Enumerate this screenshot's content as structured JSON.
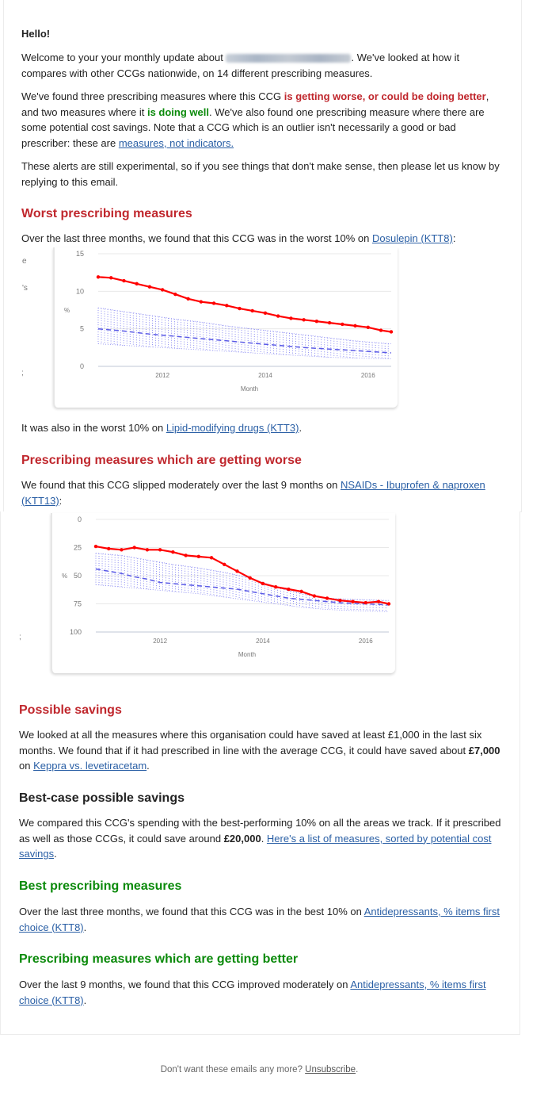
{
  "greeting": "Hello!",
  "intro": {
    "p1_a": "Welcome to your your monthly update about ",
    "p1_b": ". We've looked at how it compares with other CCGs nationwide, on 14 different prescribing measures.",
    "p2_a": "We've found three prescribing measures where this CCG ",
    "p2_worse": "is getting worse, or could be doing better",
    "p2_b": ", and two measures where it ",
    "p2_well": "is doing well",
    "p2_c": ". We've also found one prescribing measure where there are some potential cost savings. Note that a CCG which is an outlier isn't necessarily a good or bad prescriber: these are ",
    "p2_link": "measures, not indicators.",
    "p3": "These alerts are still experimental, so if you see things that don't make sense, then please let us know by replying to this email."
  },
  "worst": {
    "heading": "Worst prescribing measures",
    "text": "Over the last three months, we found that this CCG was in the worst 10% on ",
    "link": "Dosulepin (KTT8)",
    "after": ":",
    "also": "It was also in the worst 10% on ",
    "also_link": "Lipid-modifying drugs (KTT3)",
    "also_after": "."
  },
  "worse": {
    "heading": "Prescribing measures which are getting worse",
    "text": "We found that this CCG slipped moderately over the last 9 months on ",
    "link": "NSAIDs - Ibuprofen & naproxen (KTT13)",
    "after": ":"
  },
  "savings": {
    "heading": "Possible savings",
    "text": "We looked at all the measures where this organisation could have saved at least £1,000 in the last six months. We found that if it had prescribed in line with the average CCG, it could have saved about ",
    "amount": "£7,000",
    "on": " on ",
    "link": "Keppra vs. levetiracetam",
    "after": "."
  },
  "bestcase": {
    "heading": "Best-case possible savings",
    "text": "We compared this CCG's spending with the best-performing 10% on all the areas we track. If it prescribed as well as those CCGs, it could save around ",
    "amount": "£20,000",
    "mid": ". ",
    "link": "Here's a list of measures, sorted by potential cost savings",
    "after": "."
  },
  "best": {
    "heading": "Best prescribing measures",
    "text": "Over the last three months, we found that this CCG was in the best 10% on ",
    "link": "Antidepressants, % items first choice (KTT8)",
    "after": "."
  },
  "better": {
    "heading": "Prescribing measures which are getting better",
    "text": "Over the last 9 months, we found that this CCG improved moderately on ",
    "link": "Antidepressants, % items first choice (KTT8)",
    "after": "."
  },
  "footer": {
    "text": "Don't want these emails any more? ",
    "link": "Unsubscribe",
    "after": "."
  },
  "colors": {
    "heading_red": "#c0272d",
    "heading_green": "#0b8a0b",
    "link": "#2a5fa5",
    "series_ccg": "#ff0000",
    "series_median": "#5a5ae6"
  },
  "chart_data": [
    {
      "type": "line",
      "ylabel": "%",
      "xlabel": "Month",
      "yticks": [
        "15",
        "10",
        "5",
        "0"
      ],
      "ylim": [
        0,
        15
      ],
      "reversed": false,
      "xticks": [
        {
          "label": "2012",
          "x": 2012.0
        },
        {
          "label": "2014",
          "x": 2014.0
        },
        {
          "label": "2016",
          "x": 2016.0
        }
      ],
      "xlim": [
        2010.75,
        2016.45
      ],
      "series": [
        {
          "role": "ccg",
          "values": [
            [
              2010.75,
              11.9
            ],
            [
              2011.0,
              11.8
            ],
            [
              2011.25,
              11.4
            ],
            [
              2011.5,
              11.0
            ],
            [
              2011.75,
              10.6
            ],
            [
              2012.0,
              10.2
            ],
            [
              2012.25,
              9.6
            ],
            [
              2012.5,
              9.0
            ],
            [
              2012.75,
              8.6
            ],
            [
              2013.0,
              8.4
            ],
            [
              2013.25,
              8.1
            ],
            [
              2013.5,
              7.7
            ],
            [
              2013.75,
              7.4
            ],
            [
              2014.0,
              7.1
            ],
            [
              2014.25,
              6.7
            ],
            [
              2014.5,
              6.4
            ],
            [
              2014.75,
              6.2
            ],
            [
              2015.0,
              6.0
            ],
            [
              2015.25,
              5.8
            ],
            [
              2015.5,
              5.6
            ],
            [
              2015.75,
              5.4
            ],
            [
              2016.0,
              5.2
            ],
            [
              2016.25,
              4.8
            ],
            [
              2016.45,
              4.6
            ]
          ]
        },
        {
          "role": "median",
          "values": [
            [
              2010.75,
              5.0
            ],
            [
              2011.25,
              4.7
            ],
            [
              2011.75,
              4.3
            ],
            [
              2012.25,
              4.0
            ],
            [
              2012.75,
              3.7
            ],
            [
              2013.25,
              3.4
            ],
            [
              2013.75,
              3.1
            ],
            [
              2014.25,
              2.8
            ],
            [
              2014.75,
              2.5
            ],
            [
              2015.25,
              2.3
            ],
            [
              2015.75,
              2.1
            ],
            [
              2016.45,
              1.8
            ]
          ]
        },
        {
          "role": "p90",
          "values": [
            [
              2010.75,
              7.8
            ],
            [
              2011.25,
              7.3
            ],
            [
              2011.75,
              6.8
            ],
            [
              2012.25,
              6.3
            ],
            [
              2012.75,
              5.9
            ],
            [
              2013.25,
              5.4
            ],
            [
              2013.75,
              5.0
            ],
            [
              2014.25,
              4.6
            ],
            [
              2014.75,
              4.2
            ],
            [
              2015.25,
              3.8
            ],
            [
              2015.75,
              3.4
            ],
            [
              2016.45,
              3.0
            ]
          ]
        },
        {
          "role": "p10",
          "values": [
            [
              2010.75,
              3.0
            ],
            [
              2011.25,
              2.8
            ],
            [
              2011.75,
              2.6
            ],
            [
              2012.25,
              2.4
            ],
            [
              2012.75,
              2.2
            ],
            [
              2013.25,
              2.0
            ],
            [
              2013.75,
              1.8
            ],
            [
              2014.25,
              1.6
            ],
            [
              2014.75,
              1.4
            ],
            [
              2015.25,
              1.2
            ],
            [
              2015.75,
              1.1
            ],
            [
              2016.45,
              1.0
            ]
          ]
        }
      ]
    },
    {
      "type": "line",
      "ylabel": "%",
      "xlabel": "Month",
      "yticks": [
        "0",
        "25",
        "50",
        "75",
        "100"
      ],
      "ylim": [
        0,
        100
      ],
      "reversed": true,
      "xticks": [
        {
          "label": "2012",
          "x": 2012.0
        },
        {
          "label": "2014",
          "x": 2014.0
        },
        {
          "label": "2016",
          "x": 2016.0
        }
      ],
      "xlim": [
        2010.75,
        2016.45
      ],
      "series": [
        {
          "role": "ccg",
          "values": [
            [
              2010.75,
              24
            ],
            [
              2011.0,
              26
            ],
            [
              2011.25,
              27
            ],
            [
              2011.5,
              25
            ],
            [
              2011.75,
              27
            ],
            [
              2012.0,
              27
            ],
            [
              2012.25,
              29
            ],
            [
              2012.5,
              32
            ],
            [
              2012.75,
              33
            ],
            [
              2013.0,
              34
            ],
            [
              2013.25,
              40
            ],
            [
              2013.5,
              46
            ],
            [
              2013.75,
              52
            ],
            [
              2014.0,
              57
            ],
            [
              2014.25,
              60
            ],
            [
              2014.5,
              62
            ],
            [
              2014.75,
              64
            ],
            [
              2015.0,
              68
            ],
            [
              2015.25,
              70
            ],
            [
              2015.5,
              72
            ],
            [
              2015.75,
              73
            ],
            [
              2016.0,
              74
            ],
            [
              2016.25,
              73
            ],
            [
              2016.45,
              75
            ]
          ]
        },
        {
          "role": "median",
          "values": [
            [
              2010.75,
              44
            ],
            [
              2011.0,
              46
            ],
            [
              2011.25,
              48
            ],
            [
              2011.5,
              51
            ],
            [
              2011.75,
              53
            ],
            [
              2012.0,
              56
            ],
            [
              2012.5,
              58
            ],
            [
              2013.0,
              60
            ],
            [
              2013.5,
              62
            ],
            [
              2014.0,
              66
            ],
            [
              2014.5,
              70
            ],
            [
              2015.0,
              72
            ],
            [
              2015.5,
              74
            ],
            [
              2016.0,
              75
            ],
            [
              2016.45,
              76
            ]
          ]
        },
        {
          "role": "p90",
          "values": [
            [
              2010.75,
              30
            ],
            [
              2011.25,
              32
            ],
            [
              2011.75,
              36
            ],
            [
              2012.25,
              40
            ],
            [
              2012.75,
              43
            ],
            [
              2013.25,
              47
            ],
            [
              2013.75,
              52
            ],
            [
              2014.25,
              60
            ],
            [
              2014.75,
              66
            ],
            [
              2015.25,
              70
            ],
            [
              2015.75,
              71
            ],
            [
              2016.45,
              72
            ]
          ]
        },
        {
          "role": "p10",
          "values": [
            [
              2010.75,
              58
            ],
            [
              2011.25,
              60
            ],
            [
              2011.75,
              62
            ],
            [
              2012.25,
              64
            ],
            [
              2012.75,
              66
            ],
            [
              2013.25,
              69
            ],
            [
              2013.75,
              72
            ],
            [
              2014.25,
              75
            ],
            [
              2014.75,
              78
            ],
            [
              2015.25,
              80
            ],
            [
              2015.75,
              81
            ],
            [
              2016.45,
              82
            ]
          ]
        }
      ]
    }
  ]
}
